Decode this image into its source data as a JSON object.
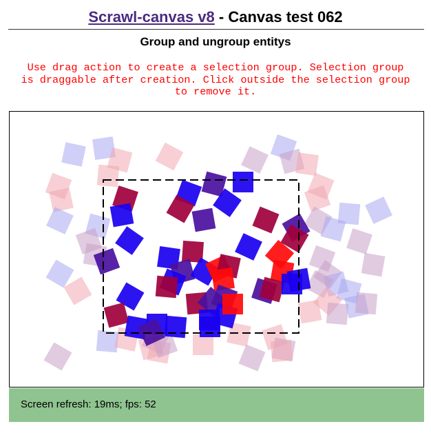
{
  "header": {
    "link_text": "Scrawl-canvas v8",
    "title_rest": " - Canvas test 062",
    "subtitle": "Group and ungroup entitys"
  },
  "instructions": {
    "lines": [
      "Use drag action to create a selection group. Selection group",
      "is draggable after creation. Click outside the selection group",
      "to remove it."
    ]
  },
  "colors": {
    "link": "#4b2a7f",
    "instructions": "#ff0000",
    "status_bg": "#8fc38f",
    "faded_blue": "#aaa8f0",
    "faded_red": "#f0a8b0",
    "faded_purple": "#c8a0c8",
    "blue": "#1a00f0",
    "red": "#ff0a0a",
    "purple": "#4a10a0",
    "crimson": "#a0003c"
  },
  "status": {
    "text": "Screen refresh: 19ms; fps: 52"
  }
}
